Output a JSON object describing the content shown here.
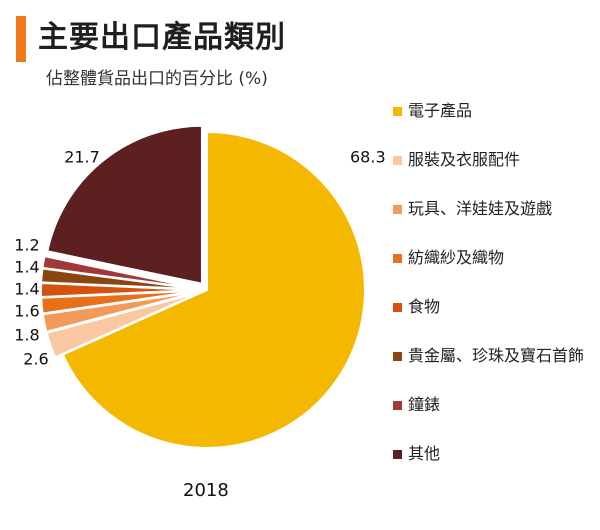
{
  "header": {
    "title": "主要出口產品類別",
    "subtitle": "佔整體貨品出口的百分比 (%)"
  },
  "colors": {
    "accent": "#f07a1a"
  },
  "chart_data": {
    "type": "pie",
    "title": "主要出口產品類別",
    "subtitle": "佔整體貨品出口的百分比 (%)",
    "year_label": "2018",
    "legend_position": "right",
    "slices": [
      {
        "name": "電子產品",
        "value": 68.3,
        "label": "68.3",
        "color": "#f5b800"
      },
      {
        "name": "服裝及衣服配件",
        "value": 2.6,
        "label": "2.6",
        "color": "#f9c8a0"
      },
      {
        "name": "玩具、洋娃娃及遊戲",
        "value": 1.8,
        "label": "1.8",
        "color": "#f29a5a"
      },
      {
        "name": "紡織紗及織物",
        "value": 1.6,
        "label": "1.6",
        "color": "#e8701a"
      },
      {
        "name": "食物",
        "value": 1.4,
        "label": "1.4",
        "color": "#d4520e"
      },
      {
        "name": "貴金屬、珍珠及寶石首飾",
        "value": 1.4,
        "label": "1.4",
        "color": "#8a4512"
      },
      {
        "name": "鐘錶",
        "value": 1.2,
        "label": "1.2",
        "color": "#a03a3a"
      },
      {
        "name": "其他",
        "value": 21.7,
        "label": "21.7",
        "color": "#5c2020"
      }
    ]
  }
}
